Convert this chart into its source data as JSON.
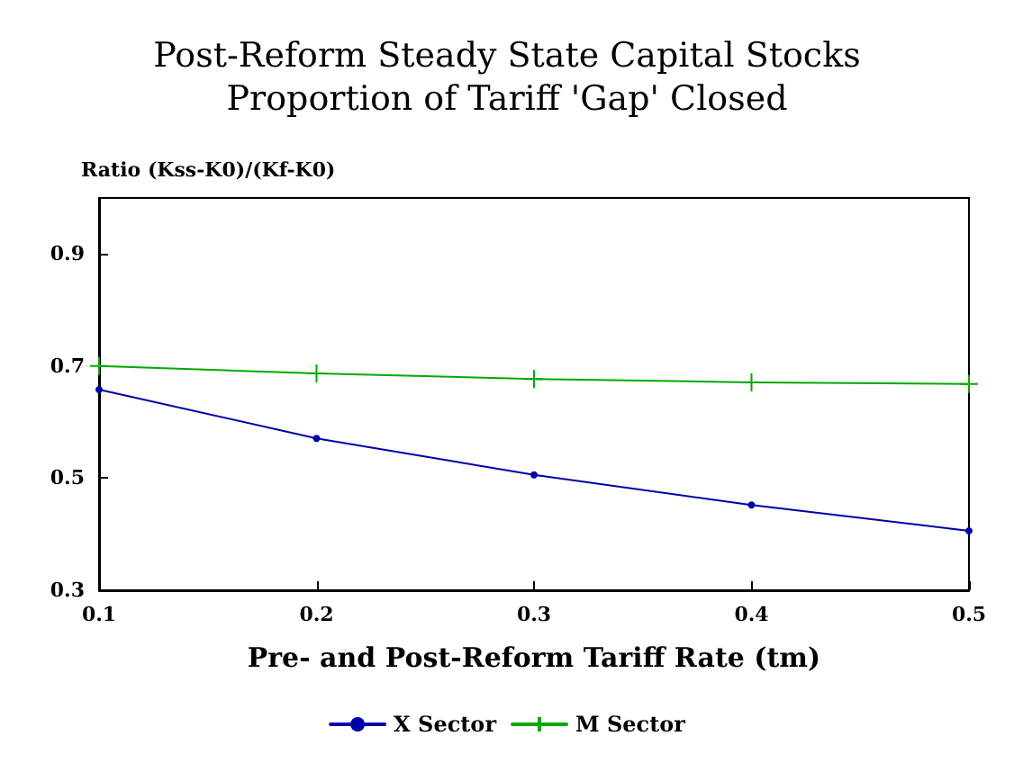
{
  "chart_data": {
    "type": "line",
    "title": "Post-Reform Steady State Capital Stocks\nProportion of Tariff 'Gap' Closed",
    "xlabel": "Pre- and Post-Reform Tariff Rate (tm)",
    "ylabel": "Ratio (Kss-K0)/(Kf-K0)",
    "x": [
      0.1,
      0.2,
      0.3,
      0.4,
      0.5
    ],
    "series": [
      {
        "name": "X Sector",
        "color": "#0000aa",
        "marker": "circle",
        "values": [
          0.658,
          0.571,
          0.506,
          0.452,
          0.406
        ]
      },
      {
        "name": "M Sector",
        "color": "#00aa00",
        "marker": "cross",
        "values": [
          0.7,
          0.687,
          0.677,
          0.671,
          0.668
        ]
      }
    ],
    "xlim": [
      0.1,
      0.5
    ],
    "xticks": [
      0.1,
      0.2,
      0.3,
      0.4,
      0.5
    ],
    "ylim": [
      0.3,
      1.0
    ],
    "yticks": [
      0.3,
      0.5,
      0.7,
      0.9
    ],
    "grid": false,
    "legend": "bottom",
    "line_style": "solid"
  }
}
